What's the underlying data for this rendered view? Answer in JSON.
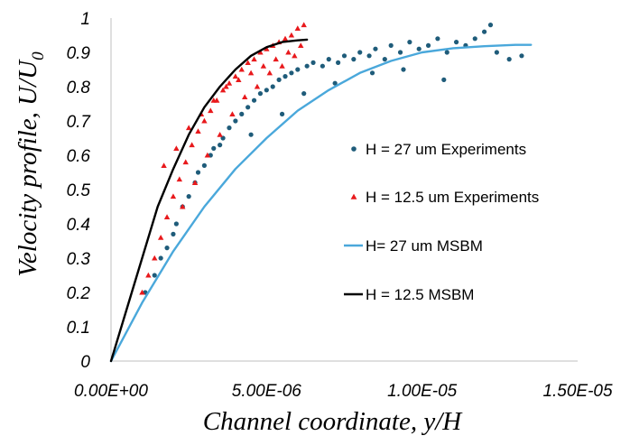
{
  "chart_data": {
    "type": "scatter",
    "title": "",
    "xlabel": "Channel coordinate, y/H",
    "ylabel_main": "Velocity profile, U/U",
    "ylabel_sub": "0",
    "xlim": [
      0,
      1.5e-05
    ],
    "ylim": [
      0,
      1
    ],
    "x_ticks": [
      0,
      5e-06,
      1e-05,
      1.5e-05
    ],
    "x_tick_labels": [
      "0.00E+00",
      "5.00E-06",
      "1.00E-05",
      "1.50E-05"
    ],
    "y_ticks": [
      0,
      0.1,
      0.2,
      0.3,
      0.4,
      0.5,
      0.6,
      0.7,
      0.8,
      0.9,
      1
    ],
    "y_tick_labels": [
      "0",
      "0.1",
      "0.2",
      "0.3",
      "0.4",
      "0.5",
      "0.6",
      "0.7",
      "0.8",
      "0.9",
      "1"
    ],
    "legend_position": "right-center",
    "series": [
      {
        "name": "H = 27 um Experiments",
        "kind": "scatter",
        "marker": "circle",
        "color": "#1f5c7a",
        "x": [
          1.1e-06,
          1.4e-06,
          1.6e-06,
          1.8e-06,
          2e-06,
          2.1e-06,
          2.3e-06,
          2.5e-06,
          2.7e-06,
          2.8e-06,
          3e-06,
          3.2e-06,
          3.3e-06,
          3.5e-06,
          3.6e-06,
          3.8e-06,
          4e-06,
          4.2e-06,
          4.4e-06,
          4.6e-06,
          4.8e-06,
          5e-06,
          5.2e-06,
          5.4e-06,
          5.6e-06,
          5.8e-06,
          6e-06,
          6.3e-06,
          6.5e-06,
          6.8e-06,
          7e-06,
          7.3e-06,
          7.5e-06,
          7.8e-06,
          8e-06,
          8.3e-06,
          8.5e-06,
          8.8e-06,
          9e-06,
          9.3e-06,
          9.6e-06,
          9.9e-06,
          1.02e-05,
          1.05e-05,
          1.08e-05,
          1.11e-05,
          1.14e-05,
          1.17e-05,
          1.2e-05,
          1.24e-05,
          1.28e-05,
          1.32e-05,
          4.5e-06,
          5.5e-06,
          6.2e-06,
          7.2e-06,
          8.4e-06,
          9.4e-06,
          1.07e-05,
          1.22e-05
        ],
        "y": [
          0.2,
          0.25,
          0.3,
          0.33,
          0.37,
          0.4,
          0.45,
          0.48,
          0.52,
          0.55,
          0.57,
          0.6,
          0.62,
          0.63,
          0.65,
          0.68,
          0.7,
          0.72,
          0.74,
          0.76,
          0.78,
          0.79,
          0.8,
          0.82,
          0.83,
          0.84,
          0.85,
          0.86,
          0.87,
          0.86,
          0.88,
          0.87,
          0.89,
          0.88,
          0.9,
          0.89,
          0.91,
          0.88,
          0.92,
          0.9,
          0.93,
          0.91,
          0.92,
          0.94,
          0.9,
          0.93,
          0.92,
          0.94,
          0.96,
          0.9,
          0.88,
          0.89,
          0.66,
          0.72,
          0.78,
          0.81,
          0.84,
          0.85,
          0.82,
          0.98
        ]
      },
      {
        "name": "H = 12.5 um Experiments",
        "kind": "scatter",
        "marker": "triangle",
        "color": "#e8191c",
        "x": [
          1e-06,
          1.2e-06,
          1.4e-06,
          1.6e-06,
          1.8e-06,
          2e-06,
          2.2e-06,
          2.4e-06,
          2.6e-06,
          2.8e-06,
          3e-06,
          3.2e-06,
          3.4e-06,
          3.6e-06,
          3.8e-06,
          4e-06,
          4.2e-06,
          4.4e-06,
          4.6e-06,
          4.8e-06,
          5e-06,
          5.2e-06,
          5.4e-06,
          5.6e-06,
          5.8e-06,
          6e-06,
          6.2e-06,
          1.7e-06,
          2.1e-06,
          2.5e-06,
          2.9e-06,
          3.3e-06,
          3.7e-06,
          4.1e-06,
          4.5e-06,
          4.9e-06,
          5.3e-06,
          5.7e-06,
          6.1e-06,
          2.3e-06,
          2.7e-06,
          3.1e-06,
          3.5e-06,
          3.9e-06,
          4.3e-06,
          4.7e-06,
          5.1e-06,
          5.5e-06,
          5.9e-06
        ],
        "y": [
          0.2,
          0.25,
          0.3,
          0.36,
          0.42,
          0.48,
          0.53,
          0.58,
          0.63,
          0.67,
          0.7,
          0.73,
          0.76,
          0.79,
          0.81,
          0.83,
          0.85,
          0.87,
          0.88,
          0.9,
          0.91,
          0.92,
          0.93,
          0.94,
          0.95,
          0.97,
          0.98,
          0.57,
          0.62,
          0.68,
          0.72,
          0.76,
          0.8,
          0.82,
          0.84,
          0.86,
          0.88,
          0.9,
          0.92,
          0.45,
          0.52,
          0.6,
          0.66,
          0.72,
          0.77,
          0.8,
          0.84,
          0.86,
          0.89
        ]
      },
      {
        "name": "H= 27 um MSBM",
        "kind": "line",
        "color": "#4aa8db",
        "x": [
          0,
          1e-06,
          2e-06,
          3e-06,
          4e-06,
          5e-06,
          6e-06,
          7e-06,
          8e-06,
          9e-06,
          1e-05,
          1.1e-05,
          1.2e-05,
          1.3e-05,
          1.35e-05
        ],
        "y": [
          0,
          0.17,
          0.32,
          0.45,
          0.56,
          0.65,
          0.73,
          0.79,
          0.84,
          0.875,
          0.9,
          0.912,
          0.918,
          0.922,
          0.922
        ]
      },
      {
        "name": "H = 12.5 MSBM",
        "kind": "line",
        "color": "#000000",
        "x": [
          0,
          5e-07,
          1e-06,
          1.5e-06,
          2e-06,
          2.5e-06,
          3e-06,
          3.5e-06,
          4e-06,
          4.5e-06,
          5e-06,
          5.5e-06,
          6e-06,
          6.3e-06
        ],
        "y": [
          0,
          0.15,
          0.3,
          0.45,
          0.56,
          0.66,
          0.74,
          0.8,
          0.85,
          0.89,
          0.915,
          0.93,
          0.935,
          0.937
        ]
      }
    ]
  }
}
